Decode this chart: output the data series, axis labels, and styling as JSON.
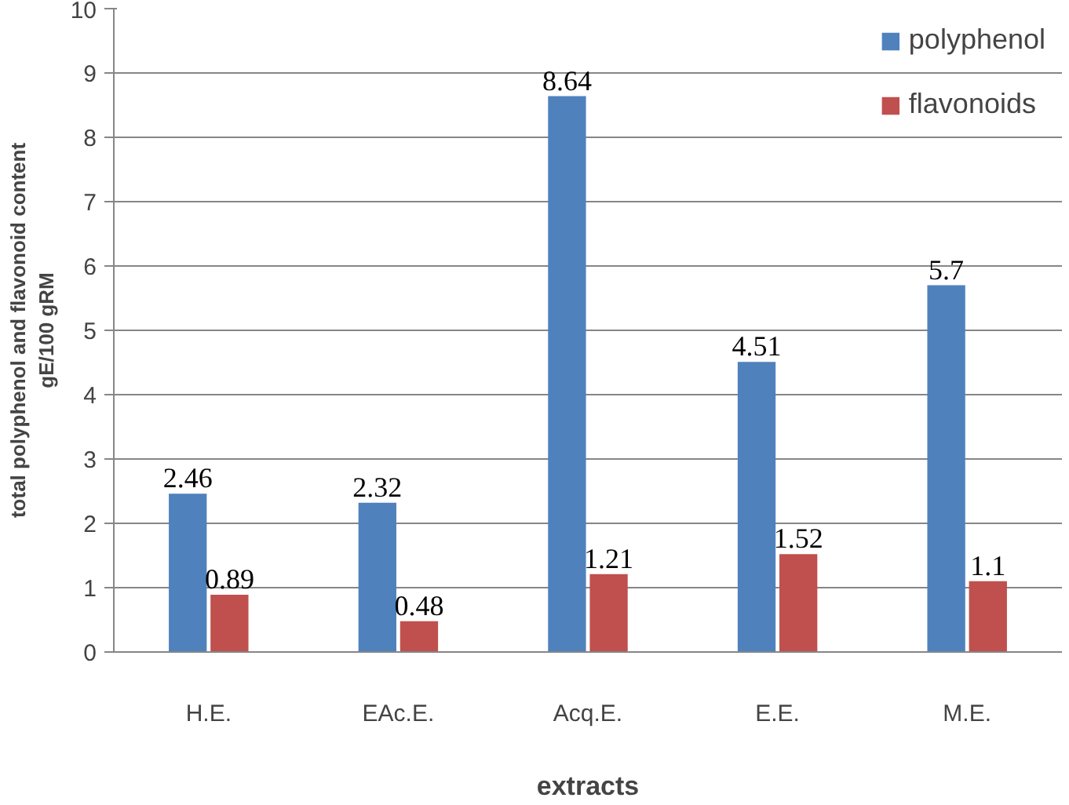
{
  "chart_data": {
    "type": "bar",
    "xlabel": "extracts",
    "ylabel": "total polyphenol and flavonoid content\ngE/100 gRM",
    "categories": [
      "H.E.",
      "EAc.E.",
      "Acq.E.",
      "E.E.",
      "M.E."
    ],
    "series": [
      {
        "name": "polyphenol",
        "color": "#4f81bd",
        "values": [
          2.46,
          2.32,
          8.64,
          4.51,
          5.7
        ]
      },
      {
        "name": "flavonoids",
        "color": "#c0504d",
        "values": [
          0.89,
          0.48,
          1.21,
          1.52,
          1.1
        ]
      }
    ],
    "ylim": [
      0,
      10
    ],
    "yticks": [
      0,
      1,
      2,
      3,
      4,
      5,
      6,
      7,
      8,
      9,
      10
    ],
    "grid": "y",
    "legend": "top right",
    "data_labels": true
  }
}
